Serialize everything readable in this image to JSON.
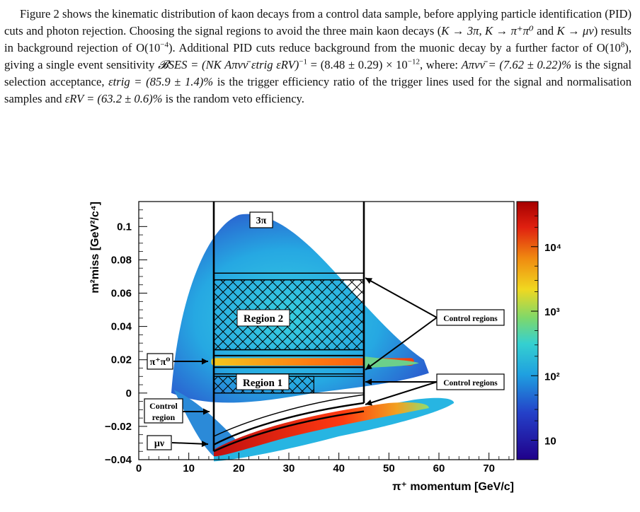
{
  "paragraph": {
    "text_1": "Figure 2 shows the kinematic distribution of kaon decays from a control data sample, before applying particle identification (PID) cuts and photon rejection. Choosing the signal regions to avoid the three main kaon decays (",
    "k3pi": "K → 3π",
    "text_2": ", ",
    "kpipi0": "K → π⁺π⁰",
    "text_3": " and ",
    "kmunu": "K → μν",
    "text_4": ") results in background rejection of O(10",
    "exp_bg": "−4",
    "text_5": "). Additional PID cuts reduce background from the muonic decay by a further factor of O(10",
    "exp_mu": "8",
    "text_6": "), giving a single event sensitivity ",
    "ses_formula": "𝓑SES = (NK Aπνν̄ εtrig εRV)",
    "ses_exp": "−1",
    "ses_value": " = (8.48 ± 0.29) × 10",
    "ses_value_exp": "−12",
    "text_7": ", where: ",
    "acc": "Aπνν̄ = (7.62 ± 0.22)%",
    "text_8": " is the signal selection acceptance, ",
    "trig": "εtrig = (85.9 ± 1.4)%",
    "text_9": " is the trigger efficiency ratio of the trigger lines used for the signal and normalisation samples and ",
    "rv": "εRV = (63.2 ± 0.6)%",
    "text_10": " is the random veto efficiency."
  },
  "chart_data": {
    "type": "heatmap",
    "xlabel": "π⁺ momentum [GeV/c]",
    "ylabel": "m²miss [GeV²/c⁴]",
    "xlim": [
      0,
      75
    ],
    "ylim": [
      -0.04,
      0.115
    ],
    "x_ticks": [
      "0",
      "10",
      "20",
      "30",
      "40",
      "50",
      "60",
      "70"
    ],
    "y_ticks": [
      "−0.04",
      "−0.02",
      "0",
      "0.02",
      "0.04",
      "0.06",
      "0.08",
      "0.1"
    ],
    "colorbar": {
      "scale": "log",
      "range": [
        5,
        50000
      ],
      "ticks": [
        "10",
        "10²",
        "10³",
        "10⁴"
      ]
    },
    "signal_p_range": [
      15,
      45
    ],
    "regions": [
      {
        "label": "Region 1",
        "y_range": [
          0.0,
          0.01
        ],
        "p_range": [
          15,
          35
        ]
      },
      {
        "label": "Region 2",
        "y_range": [
          0.026,
          0.068
        ],
        "p_range": [
          15,
          45
        ]
      }
    ],
    "annotations": {
      "three_pi": "3π",
      "pipi0": "π⁺π⁰",
      "munu": "μν",
      "control_region_label": "Control region",
      "control_regions_upper": "Control regions",
      "control_regions_lower": "Control regions"
    },
    "colors": {
      "low": "#1a0a8c",
      "mid": "#29c1e6",
      "high": "#f2d21a",
      "peak": "#b30000"
    }
  }
}
